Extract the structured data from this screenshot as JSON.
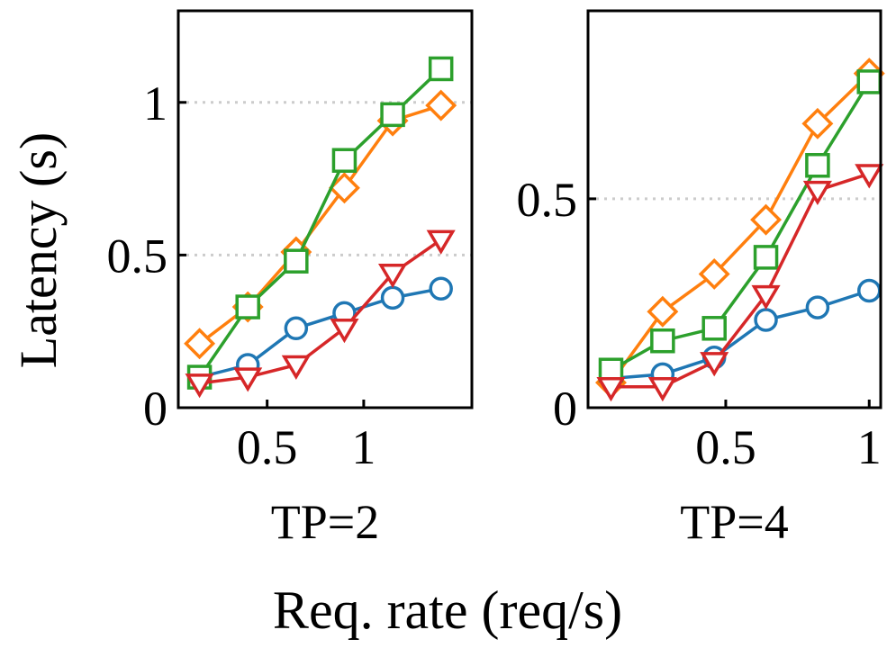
{
  "chart_data": [
    {
      "type": "line",
      "title": "TP=2",
      "xlim": [
        0.04,
        1.56
      ],
      "ylim": [
        0,
        1.3
      ],
      "x": [
        0.15,
        0.4,
        0.65,
        0.9,
        1.15,
        1.4
      ],
      "xticks": [
        0.5,
        1
      ],
      "xtick_labels": [
        "0.5",
        "1"
      ],
      "yticks": [
        0,
        0.5,
        1
      ],
      "ytick_labels": [
        "0",
        "0.5",
        "1"
      ],
      "grid_y": [
        0.5,
        1
      ],
      "series": [
        {
          "name": "series-blue",
          "color": "#1f77b4",
          "marker": "circle",
          "values": [
            0.1,
            0.14,
            0.26,
            0.31,
            0.36,
            0.39
          ]
        },
        {
          "name": "series-orange",
          "color": "#ff7f0e",
          "marker": "diamond",
          "values": [
            0.21,
            0.33,
            0.51,
            0.72,
            0.94,
            0.99
          ]
        },
        {
          "name": "series-green",
          "color": "#2ca02c",
          "marker": "square",
          "values": [
            0.1,
            0.33,
            0.48,
            0.81,
            0.96,
            1.11
          ]
        },
        {
          "name": "series-red",
          "color": "#d62728",
          "marker": "triangle-down",
          "values": [
            0.08,
            0.1,
            0.14,
            0.26,
            0.44,
            0.55
          ]
        }
      ]
    },
    {
      "type": "line",
      "title": "TP=4",
      "xlim": [
        0.02,
        1.04
      ],
      "ylim": [
        0,
        0.95
      ],
      "x": [
        0.1,
        0.28,
        0.46,
        0.64,
        0.82,
        1.0
      ],
      "xticks": [
        0.5,
        1
      ],
      "xtick_labels": [
        "0.5",
        "1"
      ],
      "yticks": [
        0,
        0.5
      ],
      "ytick_labels": [
        "0",
        "0.5"
      ],
      "grid_y": [
        0.5
      ],
      "series": [
        {
          "name": "series-blue",
          "color": "#1f77b4",
          "marker": "circle",
          "values": [
            0.07,
            0.08,
            0.12,
            0.21,
            0.24,
            0.28
          ]
        },
        {
          "name": "series-orange",
          "color": "#ff7f0e",
          "marker": "diamond",
          "values": [
            0.06,
            0.23,
            0.32,
            0.45,
            0.68,
            0.8
          ]
        },
        {
          "name": "series-green",
          "color": "#2ca02c",
          "marker": "square",
          "values": [
            0.09,
            0.16,
            0.19,
            0.36,
            0.58,
            0.78
          ]
        },
        {
          "name": "series-red",
          "color": "#d62728",
          "marker": "triangle-down",
          "values": [
            0.05,
            0.05,
            0.11,
            0.27,
            0.52,
            0.56
          ]
        }
      ]
    }
  ],
  "axes": {
    "ylabel": "Latency (s)",
    "xlabel": "Req. rate (req/s)"
  }
}
